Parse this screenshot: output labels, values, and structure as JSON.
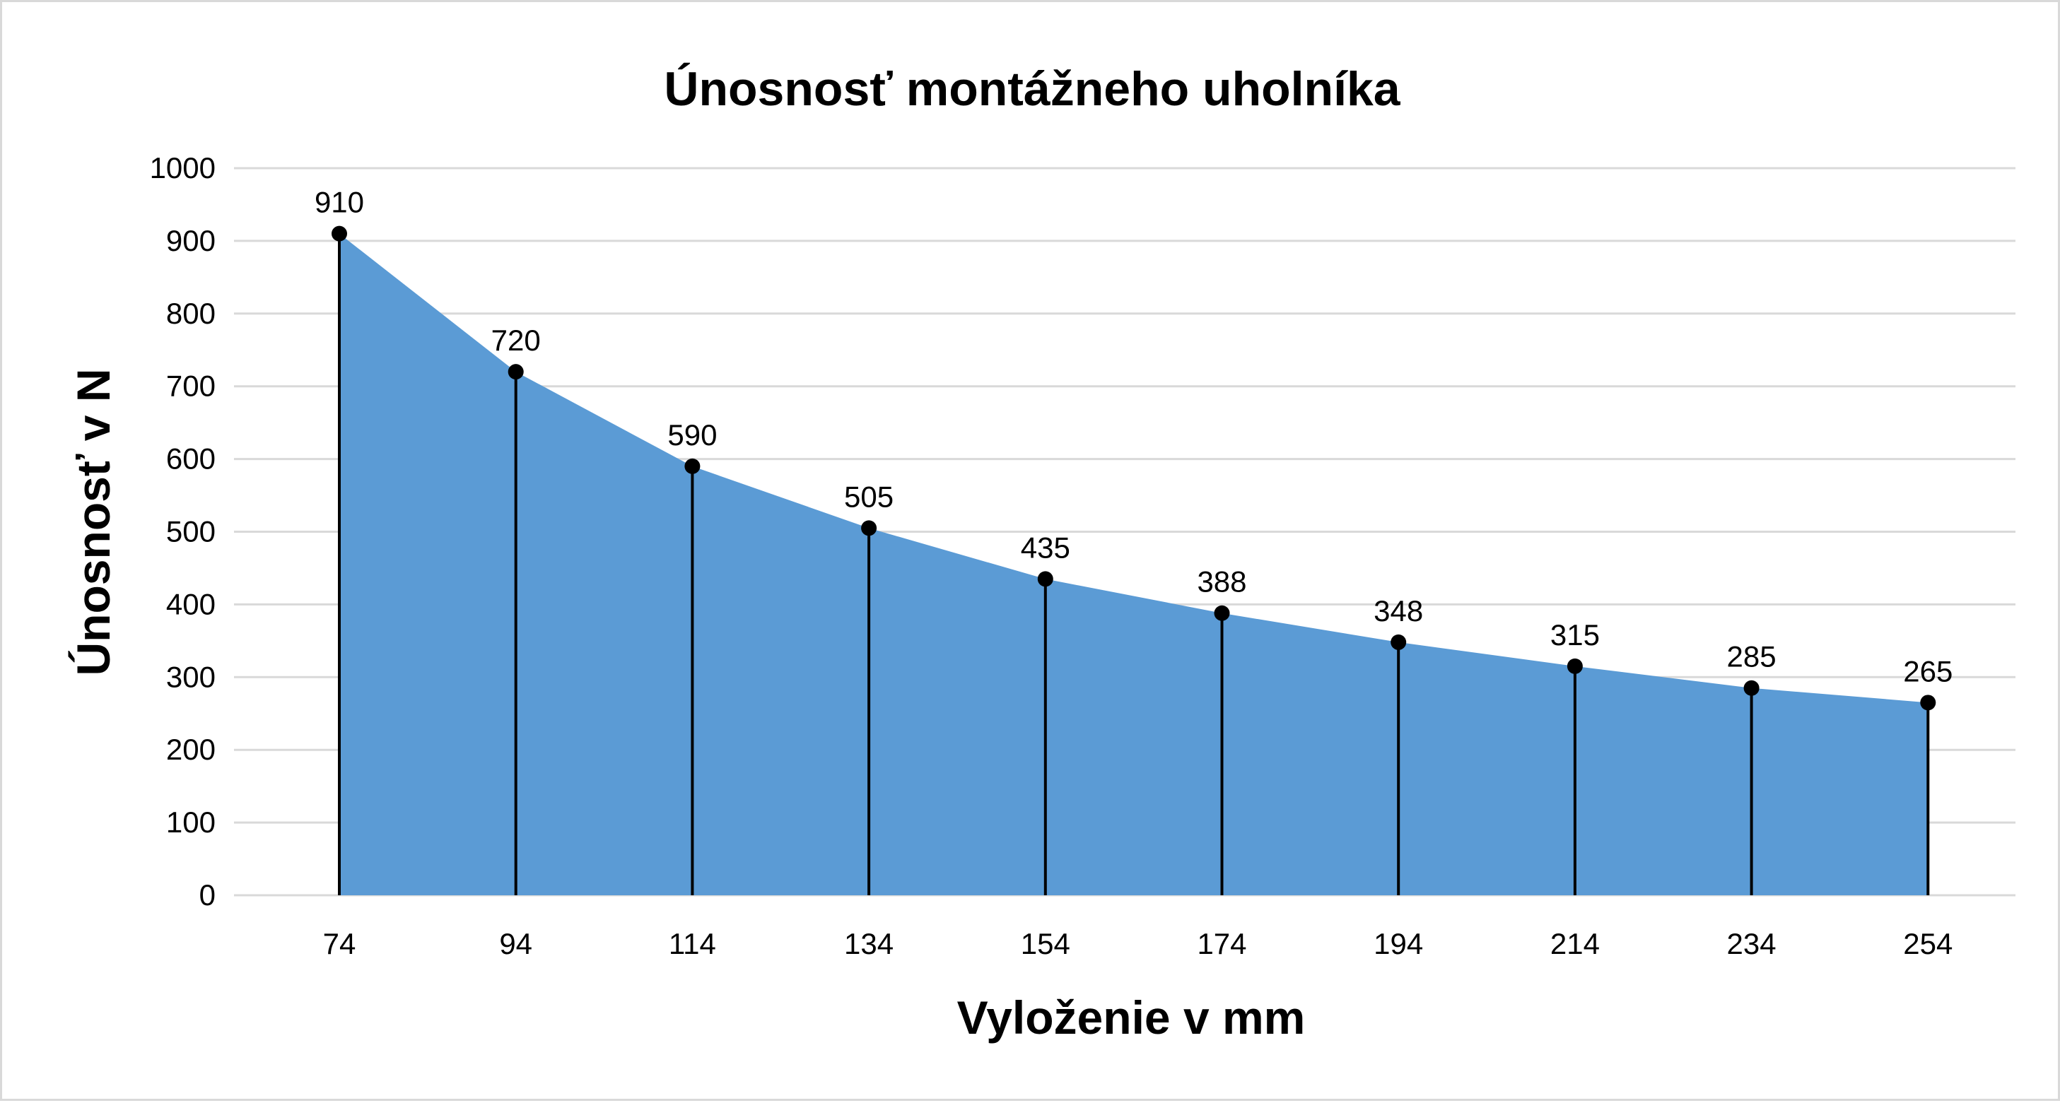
{
  "chart_data": {
    "type": "area",
    "title": "Únosnosť montážneho uholníka",
    "xlabel": "Vyloženie v mm",
    "ylabel": "Únosnosť v N",
    "categories": [
      "74",
      "94",
      "114",
      "134",
      "154",
      "174",
      "194",
      "214",
      "234",
      "254"
    ],
    "series": [
      {
        "values": [
          910,
          720,
          590,
          505,
          435,
          388,
          348,
          315,
          285,
          265
        ]
      }
    ],
    "ylim": [
      0,
      1000
    ],
    "yticks": [
      "0",
      "100",
      "200",
      "300",
      "400",
      "500",
      "600",
      "700",
      "800",
      "900",
      "1000"
    ],
    "grid": true,
    "drop_lines": true,
    "markers": true,
    "data_labels": true,
    "legend": "none",
    "colors": {
      "area_fill": "#5b9bd5",
      "marker": "#000000",
      "drop_line": "#000000",
      "gridline": "#d9d9d9",
      "border": "#d9d9d9"
    }
  }
}
